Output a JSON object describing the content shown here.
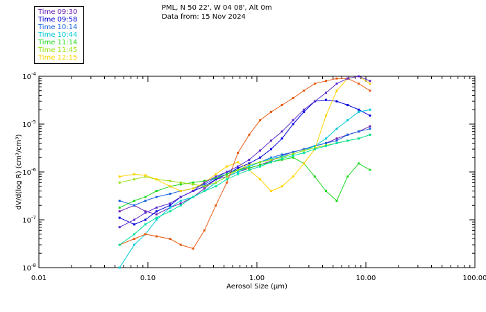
{
  "header": {
    "location": "PML, N 50 22', W 04 08', Alt 0m",
    "date": "Data from: 15 Nov 2024"
  },
  "chart_data": {
    "type": "line",
    "xscale": "log",
    "yscale": "log",
    "xlabel": "Aerosol Size (µm)",
    "ylabel": "dV/d(log R) (cm³/cm³)",
    "xlim": [
      0.01,
      100
    ],
    "ylim": [
      1e-08,
      0.0001
    ],
    "xticks": [
      "0.01",
      "0.10",
      "1.00",
      "10.00",
      "100.00"
    ],
    "yticks": [
      {
        "base": "10",
        "exp": "-4"
      },
      {
        "base": "10",
        "exp": "-5"
      },
      {
        "base": "10",
        "exp": "-6"
      },
      {
        "base": "10",
        "exp": "-7"
      },
      {
        "base": "10",
        "exp": "-8"
      }
    ],
    "x": [
      0.055,
      0.075,
      0.095,
      0.12,
      0.16,
      0.2,
      0.26,
      0.33,
      0.42,
      0.53,
      0.67,
      0.85,
      1.07,
      1.35,
      1.7,
      2.15,
      2.7,
      3.4,
      4.3,
      5.4,
      6.8,
      8.6,
      10.9
    ],
    "legend_position": "top-left-outside",
    "series": [
      {
        "name": "Time 09:30",
        "color": "#6a1fb4",
        "values": [
          1.5e-07,
          2e-07,
          1.5e-07,
          1.3e-07,
          1.8e-07,
          2.2e-07,
          3e-07,
          4.5e-07,
          7e-07,
          8e-07,
          1e-06,
          1.2e-06,
          1.4e-06,
          1.7e-06,
          2.2e-06,
          2.6e-06,
          3e-06,
          3.5e-06,
          4e-06,
          5e-06,
          6e-06,
          7e-06,
          9e-06
        ]
      },
      {
        "name": "Time 09:58",
        "color": "#0000e0",
        "values": [
          1.1e-07,
          8e-08,
          1e-07,
          1.5e-07,
          2e-07,
          3e-07,
          4e-07,
          5e-07,
          7e-07,
          9e-07,
          1.2e-06,
          1.5e-06,
          2e-06,
          3e-06,
          5e-06,
          1e-05,
          1.8e-05,
          3e-05,
          3.2e-05,
          3e-05,
          2.5e-05,
          2e-05,
          1.5e-05
        ]
      },
      {
        "name": "Time 10:14",
        "color": "#1a64e0",
        "values": [
          2.5e-07,
          2e-07,
          2.5e-07,
          3e-07,
          3.5e-07,
          4e-07,
          4.5e-07,
          5.5e-07,
          7.5e-07,
          1e-06,
          1.1e-06,
          1.3e-06,
          1.6e-06,
          2e-06,
          2.3e-06,
          2.6e-06,
          3e-06,
          3.5e-06,
          4e-06,
          4.5e-06,
          6e-06,
          7e-06,
          8e-06
        ]
      },
      {
        "name": "Time 10:44",
        "color": "#00c8d8",
        "values": [
          1e-08,
          3e-08,
          5e-08,
          1e-07,
          1.8e-07,
          2.5e-07,
          3e-07,
          4e-07,
          6e-07,
          8e-07,
          1e-06,
          1.3e-06,
          1.6e-06,
          1.9e-06,
          2.1e-06,
          2.4e-06,
          2.8e-06,
          3.5e-06,
          5e-06,
          8e-06,
          1.2e-05,
          1.8e-05,
          2e-05
        ]
      },
      {
        "name": "Time 11:14",
        "color": "#20d820",
        "values": [
          1.8e-07,
          2.5e-07,
          3e-07,
          4e-07,
          5e-07,
          5.5e-07,
          6e-07,
          6.5e-07,
          7.5e-07,
          9e-07,
          1.1e-06,
          1.2e-06,
          1.4e-06,
          1.6e-06,
          1.8e-06,
          2e-06,
          1.5e-06,
          8e-07,
          4e-07,
          2.5e-07,
          8e-07,
          1.5e-06,
          1.1e-06
        ]
      },
      {
        "name": "Time 11:45",
        "color": "#98e010",
        "values": [
          6e-07,
          7e-07,
          8e-07,
          7e-07,
          6.5e-07,
          6e-07,
          5.5e-07,
          5e-07,
          6e-07,
          8e-07,
          1.1e-06,
          1.4e-06,
          1.6e-06,
          1.8e-06,
          2e-06,
          2.4e-06,
          2.8e-06,
          3.2e-06,
          3.6e-06,
          4e-06,
          4.5e-06,
          5e-06,
          6e-06
        ]
      },
      {
        "name": "Time 12:15",
        "color": "#ffd400",
        "values": [
          8e-07,
          9e-07,
          8.5e-07,
          7e-07,
          5e-07,
          4e-07,
          4.5e-07,
          6e-07,
          9e-07,
          1.3e-06,
          1.6e-06,
          1.1e-06,
          7e-07,
          4e-07,
          5e-07,
          8e-07,
          1.5e-06,
          3e-06,
          1.5e-05,
          5e-05,
          9e-05,
          0.0001,
          7e-05
        ]
      },
      {
        "name": "",
        "color": "#e85a10",
        "values": [
          3e-08,
          4e-08,
          5e-08,
          4.5e-08,
          4e-08,
          3e-08,
          2.5e-08,
          6e-08,
          2e-07,
          6e-07,
          2.5e-06,
          6e-06,
          1.2e-05,
          1.8e-05,
          2.5e-05,
          3.5e-05,
          5e-05,
          7e-05,
          8e-05,
          9e-05,
          9e-05,
          7e-05,
          5e-05
        ]
      },
      {
        "name": "",
        "color": "#00e0a0",
        "values": [
          3e-08,
          5e-08,
          8e-08,
          1.1e-07,
          1.5e-07,
          2e-07,
          3e-07,
          4e-07,
          5e-07,
          7e-07,
          9e-07,
          1.1e-06,
          1.3e-06,
          1.6e-06,
          1.9e-06,
          2.2e-06,
          2.5e-06,
          3e-06,
          3.5e-06,
          4e-06,
          4.5e-06,
          5e-06,
          6e-06
        ]
      },
      {
        "name": "",
        "color": "#5a2ad0",
        "values": [
          7e-08,
          1e-07,
          1.4e-07,
          1.8e-07,
          2.2e-07,
          3e-07,
          4e-07,
          6e-07,
          8e-07,
          1e-06,
          1.3e-06,
          1.8e-06,
          2.8e-06,
          4.5e-06,
          7e-06,
          1.2e-05,
          2e-05,
          3e-05,
          4.5e-05,
          7e-05,
          9e-05,
          0.0001,
          8e-05
        ]
      }
    ]
  }
}
